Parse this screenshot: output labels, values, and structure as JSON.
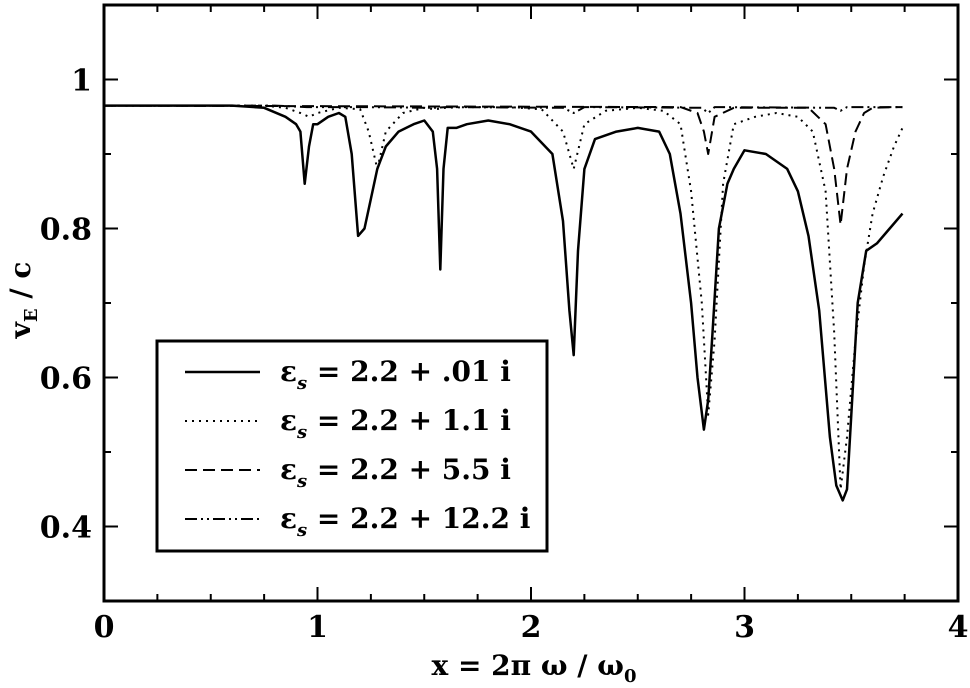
{
  "chart_data": {
    "type": "line",
    "xlabel_main": "x = 2π ω / ω",
    "xlabel_sub": "0",
    "ylabel_main": "v",
    "ylabel_sub": "E",
    "ylabel_tail": " / c",
    "xlim": [
      0,
      4
    ],
    "ylim": [
      0.3,
      1.1
    ],
    "x_ticks": [
      0,
      1,
      2,
      3,
      4
    ],
    "x_tick_labels": [
      "0",
      "1",
      "2",
      "3",
      "4"
    ],
    "y_ticks": [
      0.4,
      0.6,
      0.8,
      1.0
    ],
    "y_tick_labels": [
      "0.4",
      "0.6",
      "0.8",
      "1"
    ],
    "legend_position": "lower-left",
    "series": [
      {
        "name": "εs = 2.2 + .01 i",
        "legend_prefix": "ε",
        "legend_sub": "s",
        "legend_suffix": " = 2.2 + .01 i",
        "dash": "solid",
        "x": [
          0,
          0.6,
          0.75,
          0.85,
          0.9,
          0.92,
          0.94,
          0.96,
          0.98,
          1.0,
          1.05,
          1.1,
          1.13,
          1.16,
          1.19,
          1.22,
          1.25,
          1.28,
          1.32,
          1.38,
          1.45,
          1.5,
          1.54,
          1.56,
          1.575,
          1.59,
          1.61,
          1.65,
          1.7,
          1.8,
          1.9,
          2.0,
          2.1,
          2.15,
          2.18,
          2.2,
          2.22,
          2.25,
          2.3,
          2.4,
          2.5,
          2.6,
          2.65,
          2.7,
          2.75,
          2.78,
          2.81,
          2.83,
          2.85,
          2.88,
          2.92,
          2.95,
          3.0,
          3.1,
          3.2,
          3.25,
          3.3,
          3.35,
          3.4,
          3.43,
          3.46,
          3.48,
          3.5,
          3.53,
          3.57,
          3.62,
          3.68,
          3.74
        ],
        "y": [
          0.965,
          0.965,
          0.962,
          0.95,
          0.94,
          0.93,
          0.86,
          0.91,
          0.94,
          0.94,
          0.95,
          0.955,
          0.95,
          0.9,
          0.79,
          0.8,
          0.84,
          0.88,
          0.91,
          0.93,
          0.94,
          0.945,
          0.93,
          0.88,
          0.745,
          0.88,
          0.935,
          0.935,
          0.94,
          0.945,
          0.94,
          0.93,
          0.9,
          0.81,
          0.69,
          0.63,
          0.77,
          0.88,
          0.92,
          0.93,
          0.935,
          0.93,
          0.9,
          0.82,
          0.7,
          0.6,
          0.53,
          0.57,
          0.66,
          0.8,
          0.86,
          0.88,
          0.905,
          0.9,
          0.88,
          0.85,
          0.79,
          0.69,
          0.52,
          0.455,
          0.435,
          0.45,
          0.55,
          0.7,
          0.77,
          0.78,
          0.8,
          0.82
        ]
      },
      {
        "name": "εs = 2.2 + 1.1 i",
        "legend_prefix": "ε",
        "legend_sub": "s",
        "legend_suffix": " = 2.2 + 1.1 i",
        "dash": "dotted",
        "x": [
          0,
          0.75,
          0.85,
          0.92,
          0.96,
          1.0,
          1.1,
          1.2,
          1.24,
          1.28,
          1.32,
          1.4,
          1.5,
          1.55,
          1.6,
          1.7,
          1.9,
          2.05,
          2.15,
          2.2,
          2.25,
          2.35,
          2.5,
          2.62,
          2.7,
          2.75,
          2.8,
          2.83,
          2.86,
          2.9,
          2.95,
          3.05,
          3.15,
          3.25,
          3.32,
          3.38,
          3.42,
          3.45,
          3.48,
          3.52,
          3.56,
          3.6,
          3.65,
          3.7,
          3.74
        ],
        "y": [
          0.965,
          0.965,
          0.962,
          0.955,
          0.95,
          0.955,
          0.962,
          0.96,
          0.93,
          0.88,
          0.93,
          0.955,
          0.962,
          0.96,
          0.962,
          0.963,
          0.963,
          0.96,
          0.93,
          0.88,
          0.94,
          0.958,
          0.962,
          0.958,
          0.94,
          0.85,
          0.7,
          0.55,
          0.65,
          0.86,
          0.94,
          0.95,
          0.955,
          0.95,
          0.93,
          0.85,
          0.66,
          0.45,
          0.52,
          0.65,
          0.75,
          0.82,
          0.87,
          0.91,
          0.935
        ]
      },
      {
        "name": "εs = 2.2 + 5.5 i",
        "legend_prefix": "ε",
        "legend_sub": "s",
        "legend_suffix": " = 2.2 + 5.5 i",
        "dash": "dashed",
        "x": [
          0,
          2.7,
          2.78,
          2.81,
          2.83,
          2.86,
          2.95,
          3.3,
          3.38,
          3.42,
          3.45,
          3.48,
          3.52,
          3.56,
          3.6,
          3.7,
          3.74
        ],
        "y": [
          0.965,
          0.963,
          0.955,
          0.93,
          0.9,
          0.95,
          0.962,
          0.962,
          0.94,
          0.88,
          0.805,
          0.88,
          0.93,
          0.955,
          0.962,
          0.963,
          0.963
        ]
      },
      {
        "name": "εs = 2.2 + 12.2 i",
        "legend_prefix": "ε",
        "legend_sub": "s",
        "legend_suffix": " = 2.2 + 12.2 i",
        "dash": "dash-dot-dot",
        "x": [
          0,
          0.8,
          0.95,
          1.2,
          1.55,
          1.6,
          2.15,
          2.2,
          2.25,
          2.8,
          2.83,
          2.86,
          3.42,
          3.45,
          3.48,
          3.74
        ],
        "y": [
          0.965,
          0.965,
          0.963,
          0.963,
          0.962,
          0.963,
          0.962,
          0.955,
          0.963,
          0.962,
          0.955,
          0.963,
          0.962,
          0.958,
          0.963,
          0.963
        ]
      }
    ]
  }
}
